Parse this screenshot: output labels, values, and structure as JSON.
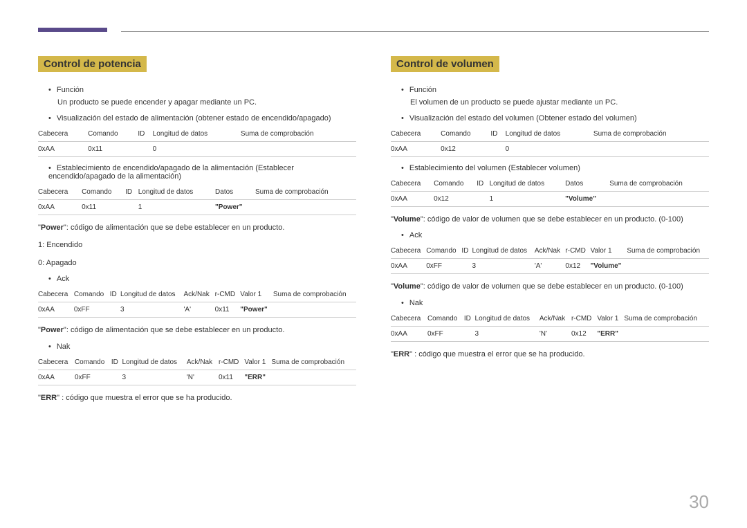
{
  "page_number": "30",
  "left": {
    "title": "Control de potencia",
    "func_label": "Función",
    "func_text": "Un producto se puede encender y apagar mediante un PC.",
    "view_label": "Visualización del estado de alimentación (obtener estado de encendido/apagado)",
    "t1": {
      "h": [
        "Cabecera",
        "Comando",
        "ID",
        "Longitud de datos",
        "Suma de comprobación"
      ],
      "r": [
        "0xAA",
        "0x11",
        "",
        "0",
        ""
      ]
    },
    "set_label": "Establecimiento de encendido/apagado de la alimentación (Establecer encendido/apagado de la alimentación)",
    "t2": {
      "h": [
        "Cabecera",
        "Comando",
        "ID",
        "Longitud de datos",
        "Datos",
        "Suma de comprobación"
      ],
      "r": [
        "0xAA",
        "0x11",
        "",
        "1",
        "\"Power\"",
        ""
      ]
    },
    "explain1": "\"Power\": código de alimentación que se debe establecer en un producto.",
    "enc": "1: Encendido",
    "apa": "0: Apagado",
    "ack_label": "Ack",
    "t3": {
      "h": [
        "Cabecera",
        "Comando",
        "ID",
        "Longitud de datos",
        "Ack/Nak",
        "r-CMD",
        "Valor 1",
        "Suma de comprobación"
      ],
      "r": [
        "0xAA",
        "0xFF",
        "",
        "3",
        "'A'",
        "0x11",
        "\"Power\"",
        ""
      ]
    },
    "explain2": "\"Power\": código de alimentación que se debe establecer en un producto.",
    "nak_label": "Nak",
    "t4": {
      "h": [
        "Cabecera",
        "Comando",
        "ID",
        "Longitud de datos",
        "Ack/Nak",
        "r-CMD",
        "Valor 1",
        "Suma de comprobación"
      ],
      "r": [
        "0xAA",
        "0xFF",
        "",
        "3",
        "'N'",
        "0x11",
        "\"ERR\"",
        ""
      ]
    },
    "explain3": "\"ERR\" : código que muestra el error que se ha producido."
  },
  "right": {
    "title": "Control de volumen",
    "func_label": "Función",
    "func_text": "El volumen de un producto se puede ajustar mediante un PC.",
    "view_label": "Visualización del estado del volumen (Obtener estado del volumen)",
    "t1": {
      "h": [
        "Cabecera",
        "Comando",
        "ID",
        "Longitud de datos",
        "Suma de comprobación"
      ],
      "r": [
        "0xAA",
        "0x12",
        "",
        "0",
        ""
      ]
    },
    "set_label": "Establecimiento del volumen (Establecer volumen)",
    "t2": {
      "h": [
        "Cabecera",
        "Comando",
        "ID",
        "Longitud de datos",
        "Datos",
        "Suma de comprobación"
      ],
      "r": [
        "0xAA",
        "0x12",
        "",
        "1",
        "\"Volume\"",
        ""
      ]
    },
    "explain1": "\"Volume\": código de valor de volumen que se debe establecer en un producto. (0-100)",
    "ack_label": "Ack",
    "t3": {
      "h": [
        "Cabecera",
        "Comando",
        "ID",
        "Longitud de datos",
        "Ack/Nak",
        "r-CMD",
        "Valor 1",
        "Suma de comprobación"
      ],
      "r": [
        "0xAA",
        "0xFF",
        "",
        "3",
        "'A'",
        "0x12",
        "\"Volume\"",
        ""
      ]
    },
    "explain2": "\"Volume\": código de valor de volumen que se debe establecer en un producto. (0-100)",
    "nak_label": "Nak",
    "t4": {
      "h": [
        "Cabecera",
        "Comando",
        "ID",
        "Longitud de datos",
        "Ack/Nak",
        "r-CMD",
        "Valor 1",
        "Suma de comprobación"
      ],
      "r": [
        "0xAA",
        "0xFF",
        "",
        "3",
        "'N'",
        "0x12",
        "\"ERR\"",
        ""
      ]
    },
    "explain3": "\"ERR\" : código que muestra el error que se ha producido."
  }
}
